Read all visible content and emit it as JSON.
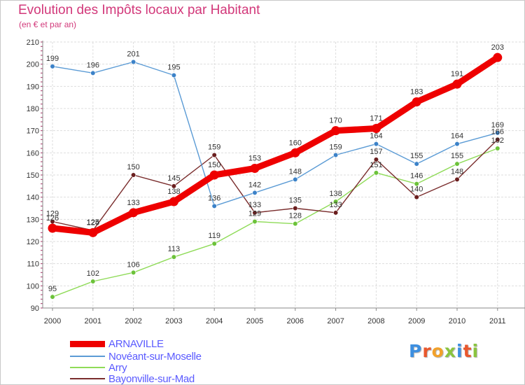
{
  "title": "Evolution des Impôts locaux par Habitant",
  "subtitle": "(en € et par an)",
  "logo": {
    "text": "Proxiti",
    "letter_colors": [
      "#3d8fe0",
      "#e9572c",
      "#f2a12a",
      "#8ac43f",
      "#3d8fe0",
      "#e9572c",
      "#8ac43f"
    ]
  },
  "chart_data": {
    "type": "line",
    "title": "Evolution des Impôts locaux par Habitant",
    "subtitle": "(en € et par an)",
    "categories": [
      "2000",
      "2001",
      "2002",
      "2003",
      "2004",
      "2005",
      "2006",
      "2007",
      "2008",
      "2009",
      "2010",
      "2011"
    ],
    "ylim": [
      90,
      210
    ],
    "yticks": [
      90,
      100,
      110,
      120,
      130,
      140,
      150,
      160,
      170,
      180,
      190,
      200,
      210
    ],
    "grid": true,
    "legend_position": "bottom-left",
    "series": [
      {
        "name": "Arry",
        "color": "#8fdb58",
        "marker": "#6cc23a",
        "emphasis": false,
        "values": [
          95,
          102,
          106,
          113,
          119,
          129,
          128,
          138,
          151,
          146,
          155,
          162
        ]
      },
      {
        "name": "Bayonville-sur-Mad",
        "color": "#7a2d2d",
        "marker": "#6a1e1e",
        "emphasis": false,
        "values": [
          129,
          125,
          150,
          145,
          159,
          133,
          135,
          133,
          157,
          140,
          148,
          166
        ]
      },
      {
        "name": "Novéant-sur-Moselle",
        "color": "#5b9bd5",
        "marker": "#3c82c8",
        "emphasis": false,
        "values": [
          199,
          196,
          201,
          195,
          136,
          142,
          148,
          159,
          164,
          155,
          164,
          169
        ]
      },
      {
        "name": "ARNAVILLE",
        "color": "#ee0000",
        "marker": "#ee0000",
        "emphasis": true,
        "values": [
          126,
          124,
          133,
          138,
          150,
          153,
          160,
          170,
          171,
          183,
          191,
          203
        ]
      }
    ],
    "legend_order": [
      "ARNAVILLE",
      "Novéant-sur-Moselle",
      "Arry",
      "Bayonville-sur-Mad"
    ]
  }
}
